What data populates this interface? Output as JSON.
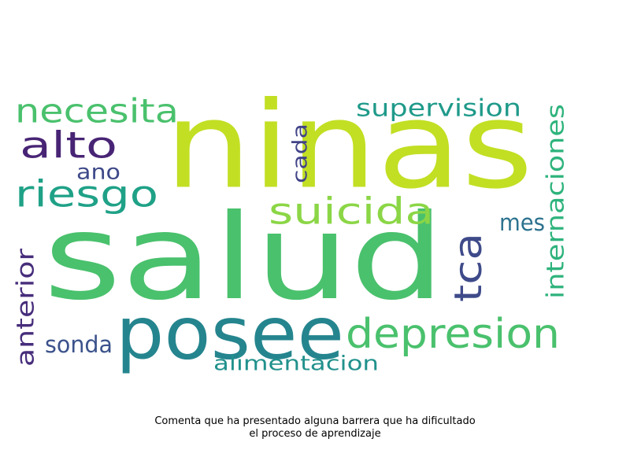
{
  "words": [
    {
      "text": "ninas",
      "color": "#c2df23"
    },
    {
      "text": "salud",
      "color": "#4ac16d"
    },
    {
      "text": "posee",
      "color": "#25858e"
    },
    {
      "text": "depresion",
      "color": "#4ac16d"
    },
    {
      "text": "suicida",
      "color": "#8bd646"
    },
    {
      "text": "necesita",
      "color": "#4ac16d"
    },
    {
      "text": "riesgo",
      "color": "#1fa187"
    },
    {
      "text": "alto",
      "color": "#482475"
    },
    {
      "text": "ano",
      "color": "#3e4989"
    },
    {
      "text": "supervision",
      "color": "#1f9a8a"
    },
    {
      "text": "internaciones",
      "color": "#2eb37c"
    },
    {
      "text": "tca",
      "color": "#3e4a89"
    },
    {
      "text": "cada",
      "color": "#414487"
    },
    {
      "text": "mes",
      "color": "#2c728e"
    },
    {
      "text": "anterior",
      "color": "#472d7b"
    },
    {
      "text": "sonda",
      "color": "#3b528b"
    },
    {
      "text": "alimentacion",
      "color": "#21918c"
    }
  ],
  "caption": {
    "line1": "Comenta que ha presentado alguna barrera que ha dificultado",
    "line2": "el proceso de aprendizaje"
  }
}
